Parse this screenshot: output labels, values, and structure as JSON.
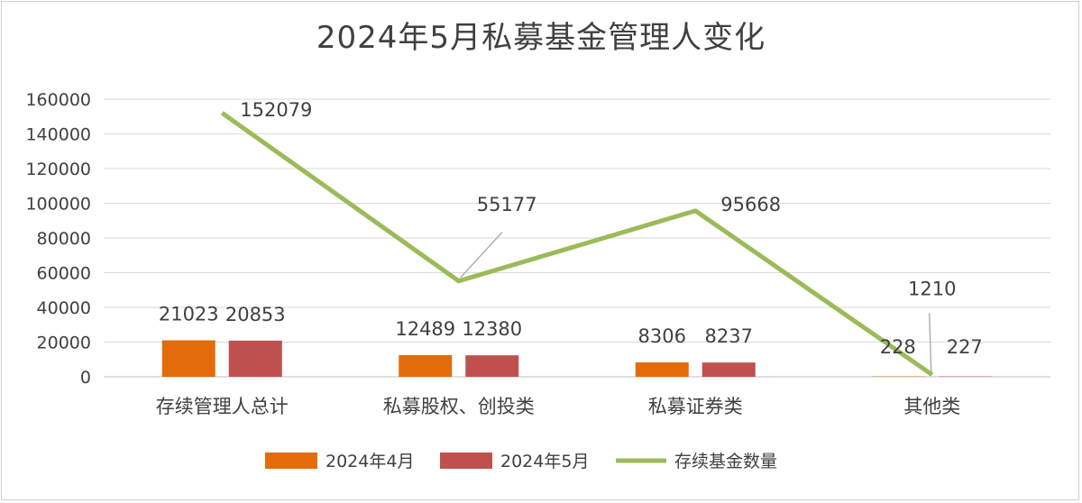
{
  "chart_data": {
    "type": "bar",
    "title": "2024年5月私募基金管理人变化",
    "categories": [
      "存续管理人总计",
      "私募股权、创投类",
      "私募证券类",
      "其他类"
    ],
    "ylim": [
      0,
      160000
    ],
    "yticks": [
      "0",
      "20000",
      "40000",
      "60000",
      "80000",
      "100000",
      "120000",
      "140000",
      "160000"
    ],
    "grid": true,
    "legend_position": "bottom",
    "series": [
      {
        "name": "2024年4月",
        "kind": "bar",
        "color": "#E36C0A",
        "values": [
          21023,
          12489,
          8306,
          228
        ],
        "labels": [
          "21023",
          "12489",
          "8306",
          "228"
        ]
      },
      {
        "name": "2024年5月",
        "kind": "bar",
        "color": "#C0504D",
        "values": [
          20853,
          12380,
          8237,
          227
        ],
        "labels": [
          "20853",
          "12380",
          "8237",
          "227"
        ]
      },
      {
        "name": "存续基金数量",
        "kind": "line",
        "color": "#9BBB59",
        "values": [
          152079,
          55177,
          95668,
          1210
        ],
        "labels": [
          "152079",
          "55177",
          "95668",
          "1210"
        ]
      }
    ]
  }
}
